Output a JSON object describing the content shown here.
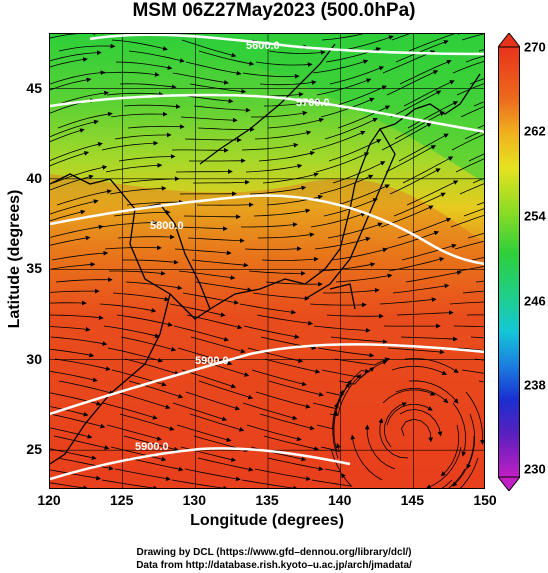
{
  "title": "MSM 06Z27May2023 (500.0hPa)",
  "xlabel": "Longitude (degrees)",
  "ylabel": "Latitude  (degrees)",
  "x_ticks": [
    "120",
    "125",
    "130",
    "135",
    "140",
    "145",
    "150"
  ],
  "y_ticks": [
    "25",
    "30",
    "35",
    "40",
    "45"
  ],
  "colorbar_ticks": [
    "270",
    "262",
    "254",
    "246",
    "238",
    "230"
  ],
  "contour_labels": [
    "5600.0",
    "5700.0",
    "5800.0",
    "5900.0",
    "5900.0"
  ],
  "credits": [
    "Drawing by DCL (https://www.gfd–dennou.org/library/dcl/)",
    "Data from http://database.rish.kyoto–u.ac.jp/arch/jmadata/"
  ],
  "colors": {
    "warm": "#e8331c",
    "mid": "#e8a519",
    "cool": "#2ecf3a",
    "contour": "#ffffff"
  },
  "chart_data": {
    "type": "heatmap",
    "title": "MSM 06Z27May2023 (500.0hPa)",
    "xlabel": "Longitude (degrees)",
    "ylabel": "Latitude  (degrees)",
    "xlim": [
      120,
      150
    ],
    "ylim": [
      22.4,
      47.6
    ],
    "colorbar_range": [
      230,
      270
    ],
    "colorbar_ticks": [
      270,
      262,
      254,
      246,
      238,
      230
    ],
    "contour_levels": [
      5600,
      5700,
      5800,
      5900
    ]
  }
}
